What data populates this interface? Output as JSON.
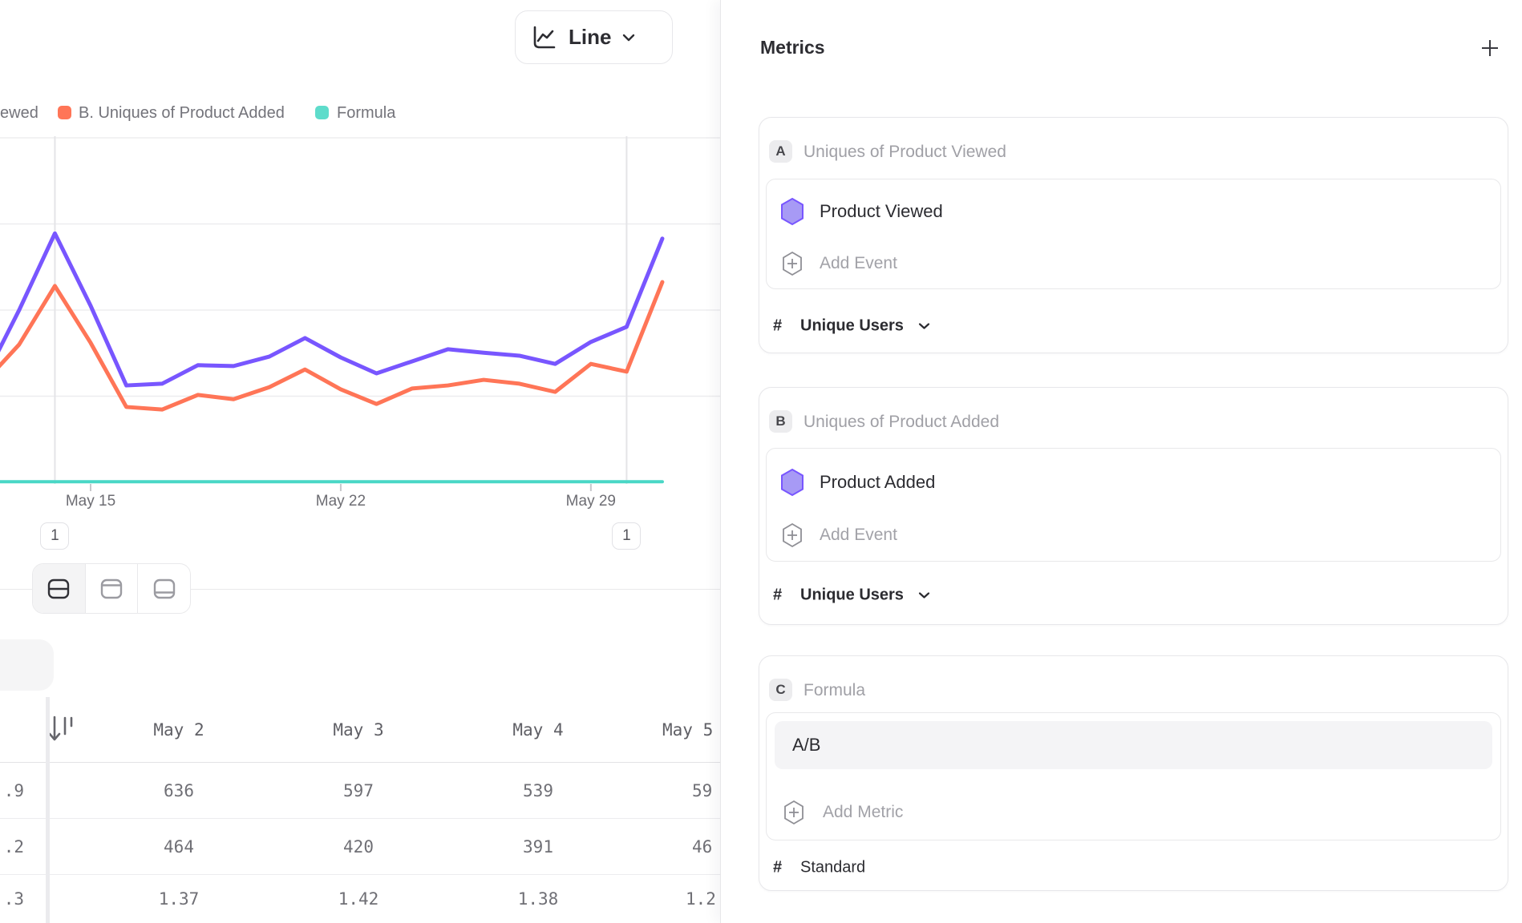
{
  "chart_controls": {
    "chart_type_label": "Line"
  },
  "legend": {
    "items": [
      {
        "label": "ewed",
        "color": null
      },
      {
        "label": "B. Uniques of Product Added",
        "color": "#FF7557"
      },
      {
        "label": "Formula",
        "color": "#5EDCCB"
      }
    ]
  },
  "chart_data": {
    "type": "line",
    "x_unit": "day of May",
    "x_axis": {
      "ticks": [
        {
          "label": "May 15",
          "day": 15
        },
        {
          "label": "May 22",
          "day": 22
        },
        {
          "label": "May 29",
          "day": 29
        }
      ]
    },
    "ylim": [
      0,
      800
    ],
    "gridline_values": [
      200,
      400,
      600,
      800
    ],
    "grid": true,
    "legend_position": "top-left",
    "series": [
      {
        "name": "A. Uniques of Product Viewed",
        "color": "#7856FF",
        "days": [
          12,
          13,
          14,
          15,
          16,
          17,
          18,
          19,
          20,
          21,
          22,
          23,
          24,
          25,
          26,
          27,
          28,
          29,
          30,
          31
        ],
        "values": [
          236,
          400,
          578,
          410,
          225,
          229,
          272,
          270,
          292,
          335,
          290,
          253,
          281,
          309,
          301,
          294,
          275,
          326,
          361,
          566
        ]
      },
      {
        "name": "B. Uniques of Product Added",
        "color": "#FF7557",
        "days": [
          12,
          13,
          14,
          15,
          16,
          17,
          18,
          19,
          20,
          21,
          22,
          23,
          24,
          25,
          26,
          27,
          28,
          29,
          30,
          31
        ],
        "values": [
          230,
          320,
          456,
          324,
          175,
          169,
          203,
          193,
          221,
          262,
          216,
          182,
          218,
          225,
          238,
          229,
          210,
          275,
          257,
          465
        ]
      },
      {
        "name": "Formula",
        "color": "#49D7C6",
        "days": [
          12,
          31
        ],
        "values": [
          1.37,
          1.37
        ]
      }
    ],
    "annotations": [
      {
        "label": "1",
        "day": 14
      },
      {
        "label": "1",
        "day": 30
      }
    ]
  },
  "view_toggle": {
    "options": [
      "chart-and-table",
      "chart-only",
      "table-only"
    ],
    "active": "chart-and-table"
  },
  "table": {
    "frozen_column": {
      "sort_icon": "sort-descending",
      "visible_fragments": [
        ".9",
        ".2",
        ".3"
      ]
    },
    "columns": [
      "May 2",
      "May 3",
      "May 4",
      "May 5"
    ],
    "rows": [
      {
        "cells": [
          "636",
          "597",
          "539",
          "59"
        ]
      },
      {
        "cells": [
          "464",
          "420",
          "391",
          "46"
        ]
      },
      {
        "cells": [
          "1.37",
          "1.42",
          "1.38",
          "1.2"
        ]
      }
    ]
  },
  "metrics_panel": {
    "title": "Metrics",
    "add_button": "plus",
    "cards": [
      {
        "letter": "A",
        "title": "Uniques of Product Viewed",
        "event_label": "Product Viewed",
        "add_label": "Add Event",
        "footer": {
          "prefix": "#",
          "label": "Unique Users",
          "chevron": true
        }
      },
      {
        "letter": "B",
        "title": "Uniques of Product Added",
        "event_label": "Product Added",
        "add_label": "Add Event",
        "footer": {
          "prefix": "#",
          "label": "Unique Users",
          "chevron": true
        }
      },
      {
        "letter": "C",
        "title": "Formula",
        "formula_value": "A/B",
        "add_label": "Add Metric",
        "footer": {
          "prefix": "#",
          "label": "Standard",
          "chevron": false
        }
      }
    ]
  },
  "colors": {
    "purple": "#7856FF",
    "orange": "#FF7557",
    "teal": "#49D7C6",
    "hexagon_fill": "#A79AF5",
    "gridline": "#ededef",
    "annotation_line": "#e4e4e7"
  }
}
